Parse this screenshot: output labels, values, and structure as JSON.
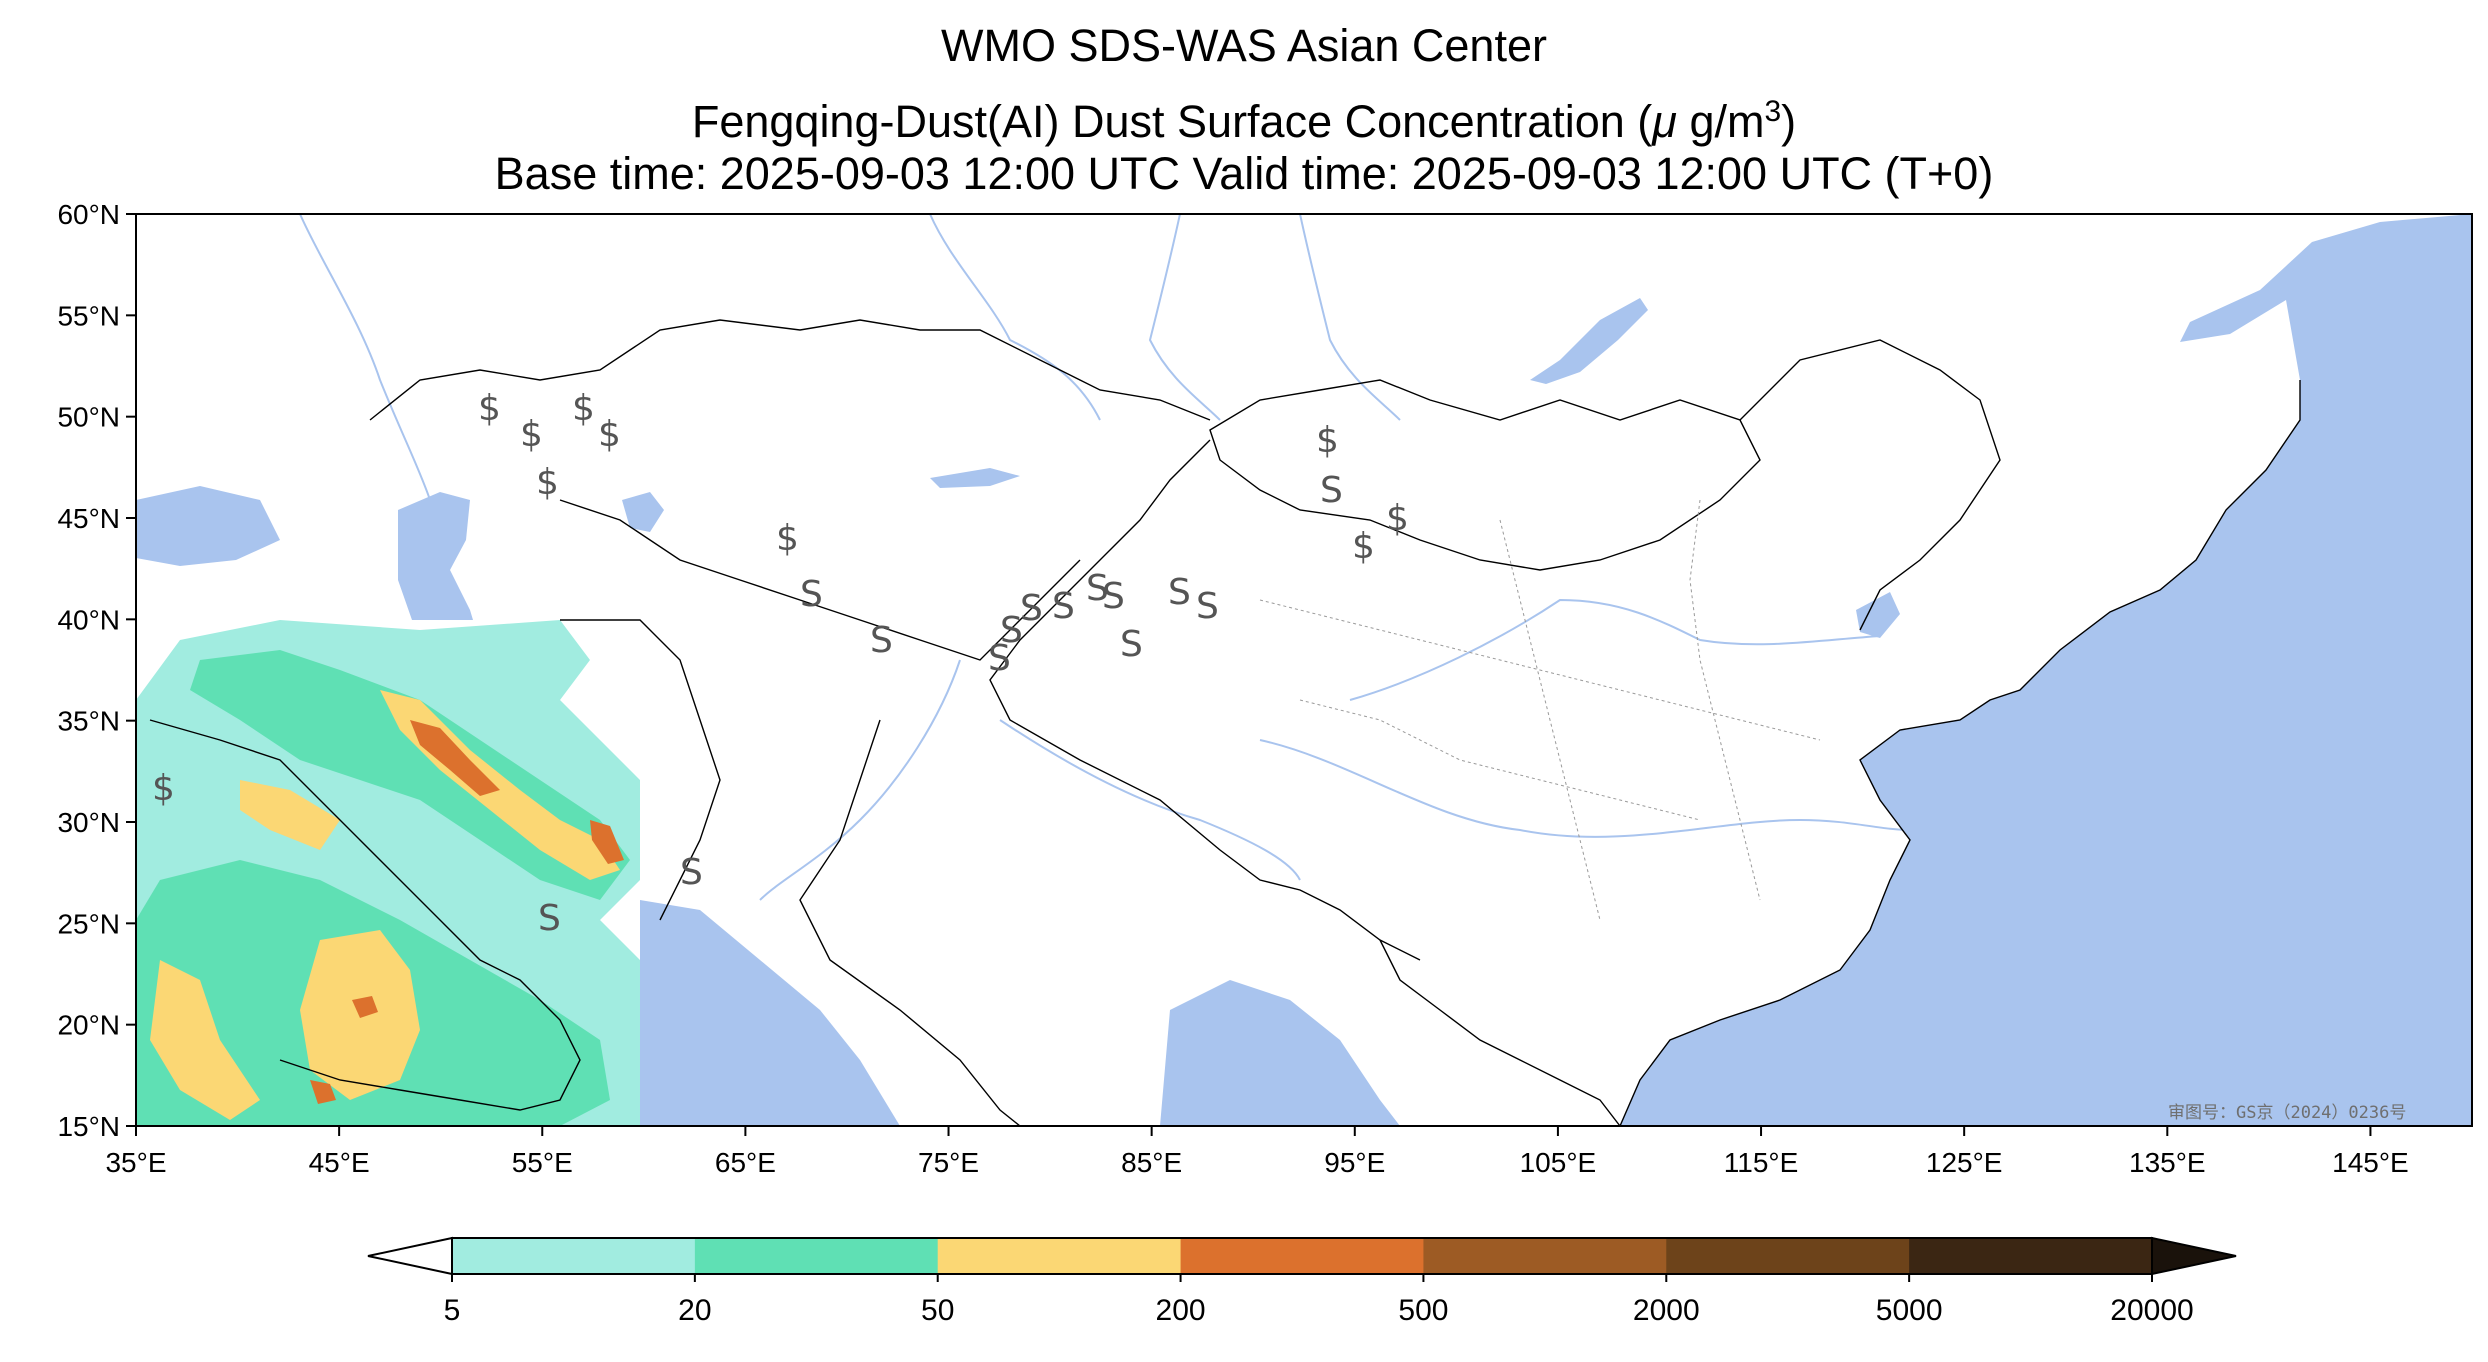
{
  "header": {
    "line1": "WMO SDS-WAS Asian Center",
    "line2_prefix": "Fengqing-Dust(AI) Dust Surface Concentration (",
    "line2_unit_mu": "μ",
    "line2_unit_rest": " g/m",
    "line2_unit_exp": "3",
    "line2_suffix": ")",
    "line3": "Base time: 2025-09-03 12:00 UTC Valid time: 2025-09-03 12:00 UTC (T+0)"
  },
  "axes": {
    "lat_ticks": [
      "60°N",
      "55°N",
      "50°N",
      "45°N",
      "40°N",
      "35°N",
      "30°N",
      "25°N",
      "20°N",
      "15°N"
    ],
    "lon_ticks": [
      "35°E",
      "45°E",
      "55°E",
      "65°E",
      "75°E",
      "85°E",
      "95°E",
      "105°E",
      "115°E",
      "125°E",
      "135°E",
      "145°E"
    ]
  },
  "colorbar": {
    "tick_labels": [
      "5",
      "20",
      "50",
      "200",
      "500",
      "2000",
      "5000",
      "20000"
    ],
    "colors": [
      "#a1ece0",
      "#5fe0b4",
      "#fbd774",
      "#dc712d",
      "#9d5b24",
      "#6d431a",
      "#3b2613",
      "#1a120b"
    ]
  },
  "colors": {
    "ocean": "#a9c4ee",
    "river": "#a9c4ee",
    "land": "#ffffff",
    "border": "#000000"
  },
  "review_number": "审图号：GS京（2024）0236号",
  "weather_symbols": {
    "haze_symbol": "$",
    "dust_symbol": "S"
  }
}
